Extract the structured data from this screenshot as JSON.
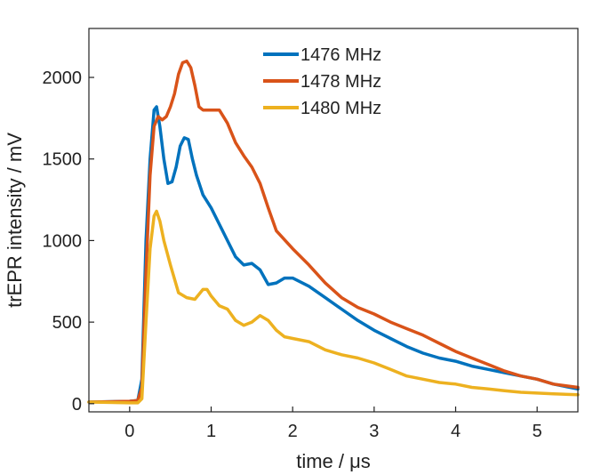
{
  "chart_data": {
    "type": "line",
    "title": "",
    "xlabel": "time / μs",
    "ylabel": "trEPR intensity / mV",
    "xlim": [
      -0.5,
      5.5
    ],
    "ylim": [
      -50,
      2300
    ],
    "xticks": [
      0,
      1,
      2,
      3,
      4,
      5
    ],
    "yticks": [
      0,
      500,
      1000,
      1500,
      2000
    ],
    "grid": false,
    "legend_position": "top-center",
    "series": [
      {
        "name": "1476 MHz",
        "color": "#0072BD",
        "x": [
          -0.5,
          0.0,
          0.1,
          0.15,
          0.2,
          0.25,
          0.3,
          0.33,
          0.37,
          0.42,
          0.47,
          0.52,
          0.57,
          0.62,
          0.67,
          0.72,
          0.77,
          0.82,
          0.9,
          1.0,
          1.1,
          1.2,
          1.3,
          1.4,
          1.5,
          1.6,
          1.7,
          1.8,
          1.9,
          2.0,
          2.2,
          2.4,
          2.6,
          2.8,
          3.0,
          3.2,
          3.4,
          3.6,
          3.8,
          4.0,
          4.2,
          4.4,
          4.6,
          4.8,
          5.0,
          5.2,
          5.5
        ],
        "values": [
          10,
          15,
          20,
          150,
          1000,
          1500,
          1800,
          1820,
          1700,
          1500,
          1350,
          1360,
          1450,
          1580,
          1630,
          1620,
          1500,
          1400,
          1280,
          1200,
          1100,
          1000,
          900,
          850,
          860,
          820,
          730,
          740,
          770,
          770,
          720,
          650,
          580,
          510,
          450,
          400,
          350,
          310,
          280,
          260,
          230,
          210,
          190,
          170,
          150,
          120,
          90
        ]
      },
      {
        "name": "1478 MHz",
        "color": "#D95319",
        "x": [
          -0.5,
          0.0,
          0.1,
          0.15,
          0.2,
          0.25,
          0.3,
          0.35,
          0.4,
          0.45,
          0.5,
          0.55,
          0.6,
          0.65,
          0.7,
          0.75,
          0.8,
          0.85,
          0.9,
          1.0,
          1.1,
          1.2,
          1.3,
          1.4,
          1.5,
          1.6,
          1.7,
          1.8,
          2.0,
          2.2,
          2.4,
          2.6,
          2.8,
          3.0,
          3.2,
          3.4,
          3.6,
          3.8,
          4.0,
          4.2,
          4.4,
          4.6,
          4.8,
          5.0,
          5.2,
          5.5
        ],
        "values": [
          10,
          15,
          20,
          100,
          800,
          1400,
          1700,
          1760,
          1740,
          1760,
          1820,
          1900,
          2020,
          2090,
          2100,
          2060,
          1950,
          1820,
          1800,
          1800,
          1800,
          1720,
          1600,
          1520,
          1450,
          1350,
          1200,
          1060,
          950,
          850,
          740,
          650,
          590,
          550,
          500,
          460,
          420,
          370,
          320,
          280,
          240,
          200,
          170,
          150,
          120,
          100
        ]
      },
      {
        "name": "1480 MHz",
        "color": "#EDB120",
        "x": [
          -0.5,
          0.0,
          0.1,
          0.15,
          0.2,
          0.25,
          0.3,
          0.33,
          0.37,
          0.42,
          0.5,
          0.6,
          0.7,
          0.8,
          0.9,
          0.95,
          1.0,
          1.1,
          1.2,
          1.3,
          1.4,
          1.5,
          1.6,
          1.7,
          1.8,
          1.9,
          2.0,
          2.2,
          2.4,
          2.6,
          2.8,
          3.0,
          3.2,
          3.4,
          3.6,
          3.8,
          4.0,
          4.2,
          4.4,
          4.6,
          4.8,
          5.0,
          5.2,
          5.5
        ],
        "values": [
          10,
          5,
          5,
          30,
          500,
          950,
          1150,
          1180,
          1120,
          1000,
          850,
          680,
          650,
          640,
          700,
          700,
          660,
          600,
          580,
          510,
          480,
          500,
          540,
          510,
          450,
          410,
          400,
          380,
          330,
          300,
          280,
          250,
          210,
          170,
          150,
          130,
          120,
          100,
          90,
          80,
          70,
          65,
          60,
          55
        ]
      }
    ]
  }
}
